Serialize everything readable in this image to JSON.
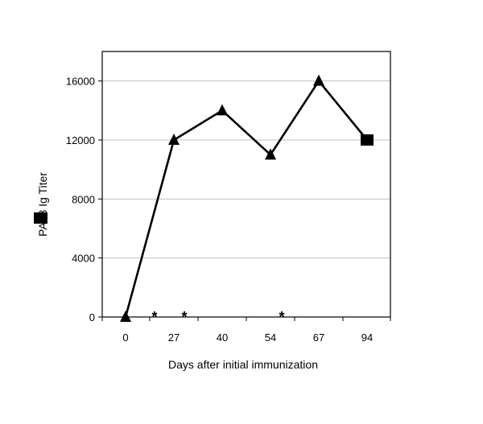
{
  "chart_data": {
    "type": "line",
    "title": "",
    "xlabel": "Days after initial immunization",
    "ylabel": "PA83 Ig Titer",
    "x_categories": [
      "0",
      "27",
      "40",
      "54",
      "67",
      "94"
    ],
    "ylim": [
      0,
      18000
    ],
    "y_ticks": [
      "0",
      "4000",
      "8000",
      "12000",
      "16000"
    ],
    "y_tick_values": [
      0,
      4000,
      8000,
      12000,
      16000
    ],
    "grid": "horizontal",
    "series": [
      {
        "name": "",
        "marker": "triangle",
        "points": [
          {
            "x": "0",
            "y": 0
          },
          {
            "x": "27",
            "y": 12000
          },
          {
            "x": "40",
            "y": 14000
          },
          {
            "x": "54",
            "y": 11000
          },
          {
            "x": "67",
            "y": 16000
          },
          {
            "x": "94",
            "y": 12000
          }
        ],
        "last_marker": "square"
      }
    ],
    "annotations": [
      {
        "text": "*",
        "x_between": [
          "0",
          "27"
        ],
        "y": 0
      },
      {
        "text": "*",
        "x_between": [
          "27",
          "40"
        ],
        "y": 0
      },
      {
        "text": "*",
        "x_between": [
          "54",
          "67"
        ],
        "y": 0
      }
    ],
    "colors": {
      "line": "#000000",
      "grid": "#c0c0c0",
      "markers": "#000000"
    }
  }
}
